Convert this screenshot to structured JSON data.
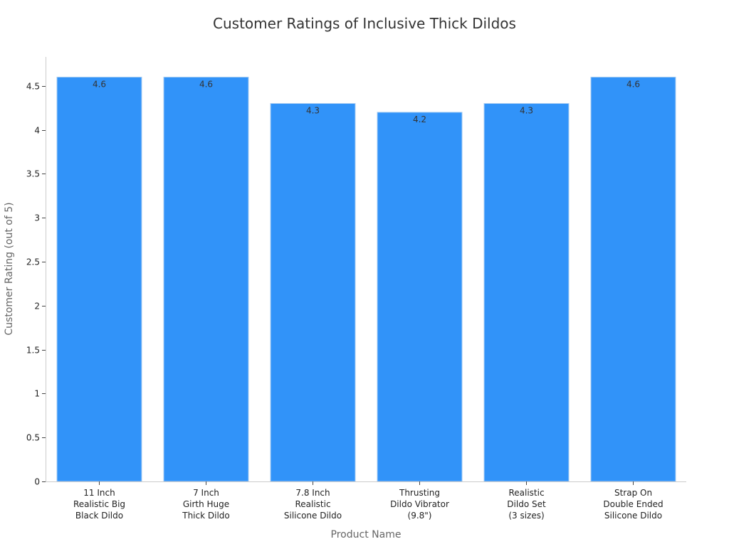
{
  "chart_data": {
    "type": "bar",
    "title": "Customer Ratings of Inclusive Thick Dildos",
    "xlabel": "Product Name",
    "ylabel": "Customer Rating (out of 5)",
    "categories": [
      [
        "11 Inch",
        "Realistic Big",
        "Black Dildo"
      ],
      [
        "7 Inch",
        "Girth Huge",
        "Thick Dildo"
      ],
      [
        "7.8 Inch",
        "Realistic",
        "Silicone Dildo"
      ],
      [
        "Thrusting",
        "Dildo Vibrator",
        "(9.8\")"
      ],
      [
        "Realistic",
        "Dildo Set",
        "(3 sizes)"
      ],
      [
        "Strap On",
        "Double Ended",
        "Silicone Dildo"
      ]
    ],
    "values": [
      4.6,
      4.6,
      4.3,
      4.2,
      4.3,
      4.6
    ],
    "value_labels": [
      "4.6",
      "4.6",
      "4.3",
      "4.2",
      "4.3",
      "4.6"
    ],
    "ylim": [
      0,
      4.83
    ],
    "yticks": [
      0,
      0.5,
      1,
      1.5,
      2,
      2.5,
      3,
      3.5,
      4,
      4.5
    ],
    "ytick_labels": [
      "0",
      "0.5",
      "1",
      "1.5",
      "2",
      "2.5",
      "3",
      "3.5",
      "4",
      "4.5"
    ],
    "bar_color": "#3193f9",
    "bar_edge_color": "#a9cdf2",
    "grid": false,
    "legend": "none"
  }
}
